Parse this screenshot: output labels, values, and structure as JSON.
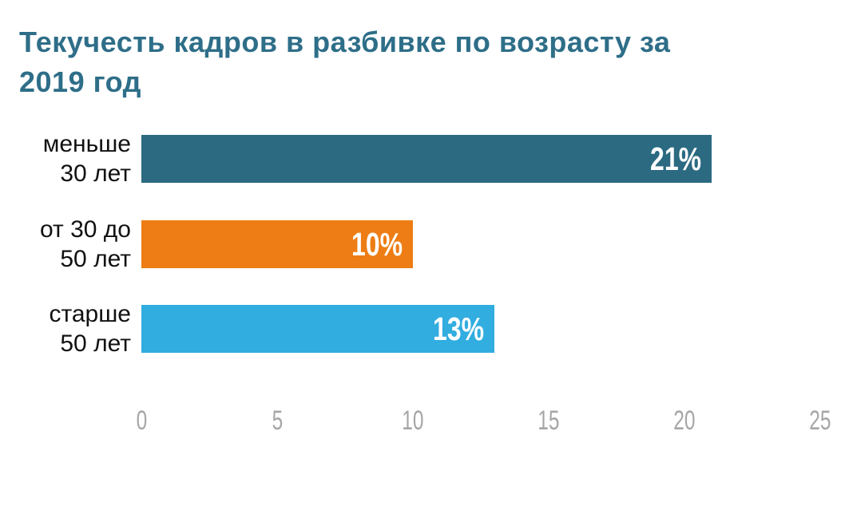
{
  "title": {
    "text": "Текучесть кадров в разбивке по возрасту за 2019 год",
    "lines": [
      "Текучесть кадров в разбивке по возрасту за",
      "2019 год"
    ],
    "color": "#2E6E88"
  },
  "chart_data": {
    "type": "bar",
    "orientation": "horizontal",
    "title": "Текучесть кадров в разбивке по возрасту за 2019 год",
    "categories": [
      {
        "label": "меньше 30 лет",
        "lines": [
          "меньше",
          "30 лет"
        ]
      },
      {
        "label": "от 30 до 50 лет",
        "lines": [
          "от 30 до",
          "50 лет"
        ]
      },
      {
        "label": "старше 50 лет",
        "lines": [
          "старше",
          "50 лет"
        ]
      }
    ],
    "values": [
      21,
      10,
      13
    ],
    "value_labels": [
      "21%",
      "10%",
      "13%"
    ],
    "bar_colors": [
      "#2B6A81",
      "#ED7D14",
      "#31ADE0"
    ],
    "value_label_color": "#FFFFFF",
    "category_label_color": "#111111",
    "xlabel": "",
    "ylabel": "",
    "xlim": [
      0,
      25
    ],
    "x_ticks": [
      "0",
      "5",
      "10",
      "15",
      "20",
      "25"
    ],
    "x_tick_color": "#A6A6A6",
    "grid": false,
    "legend": false
  }
}
